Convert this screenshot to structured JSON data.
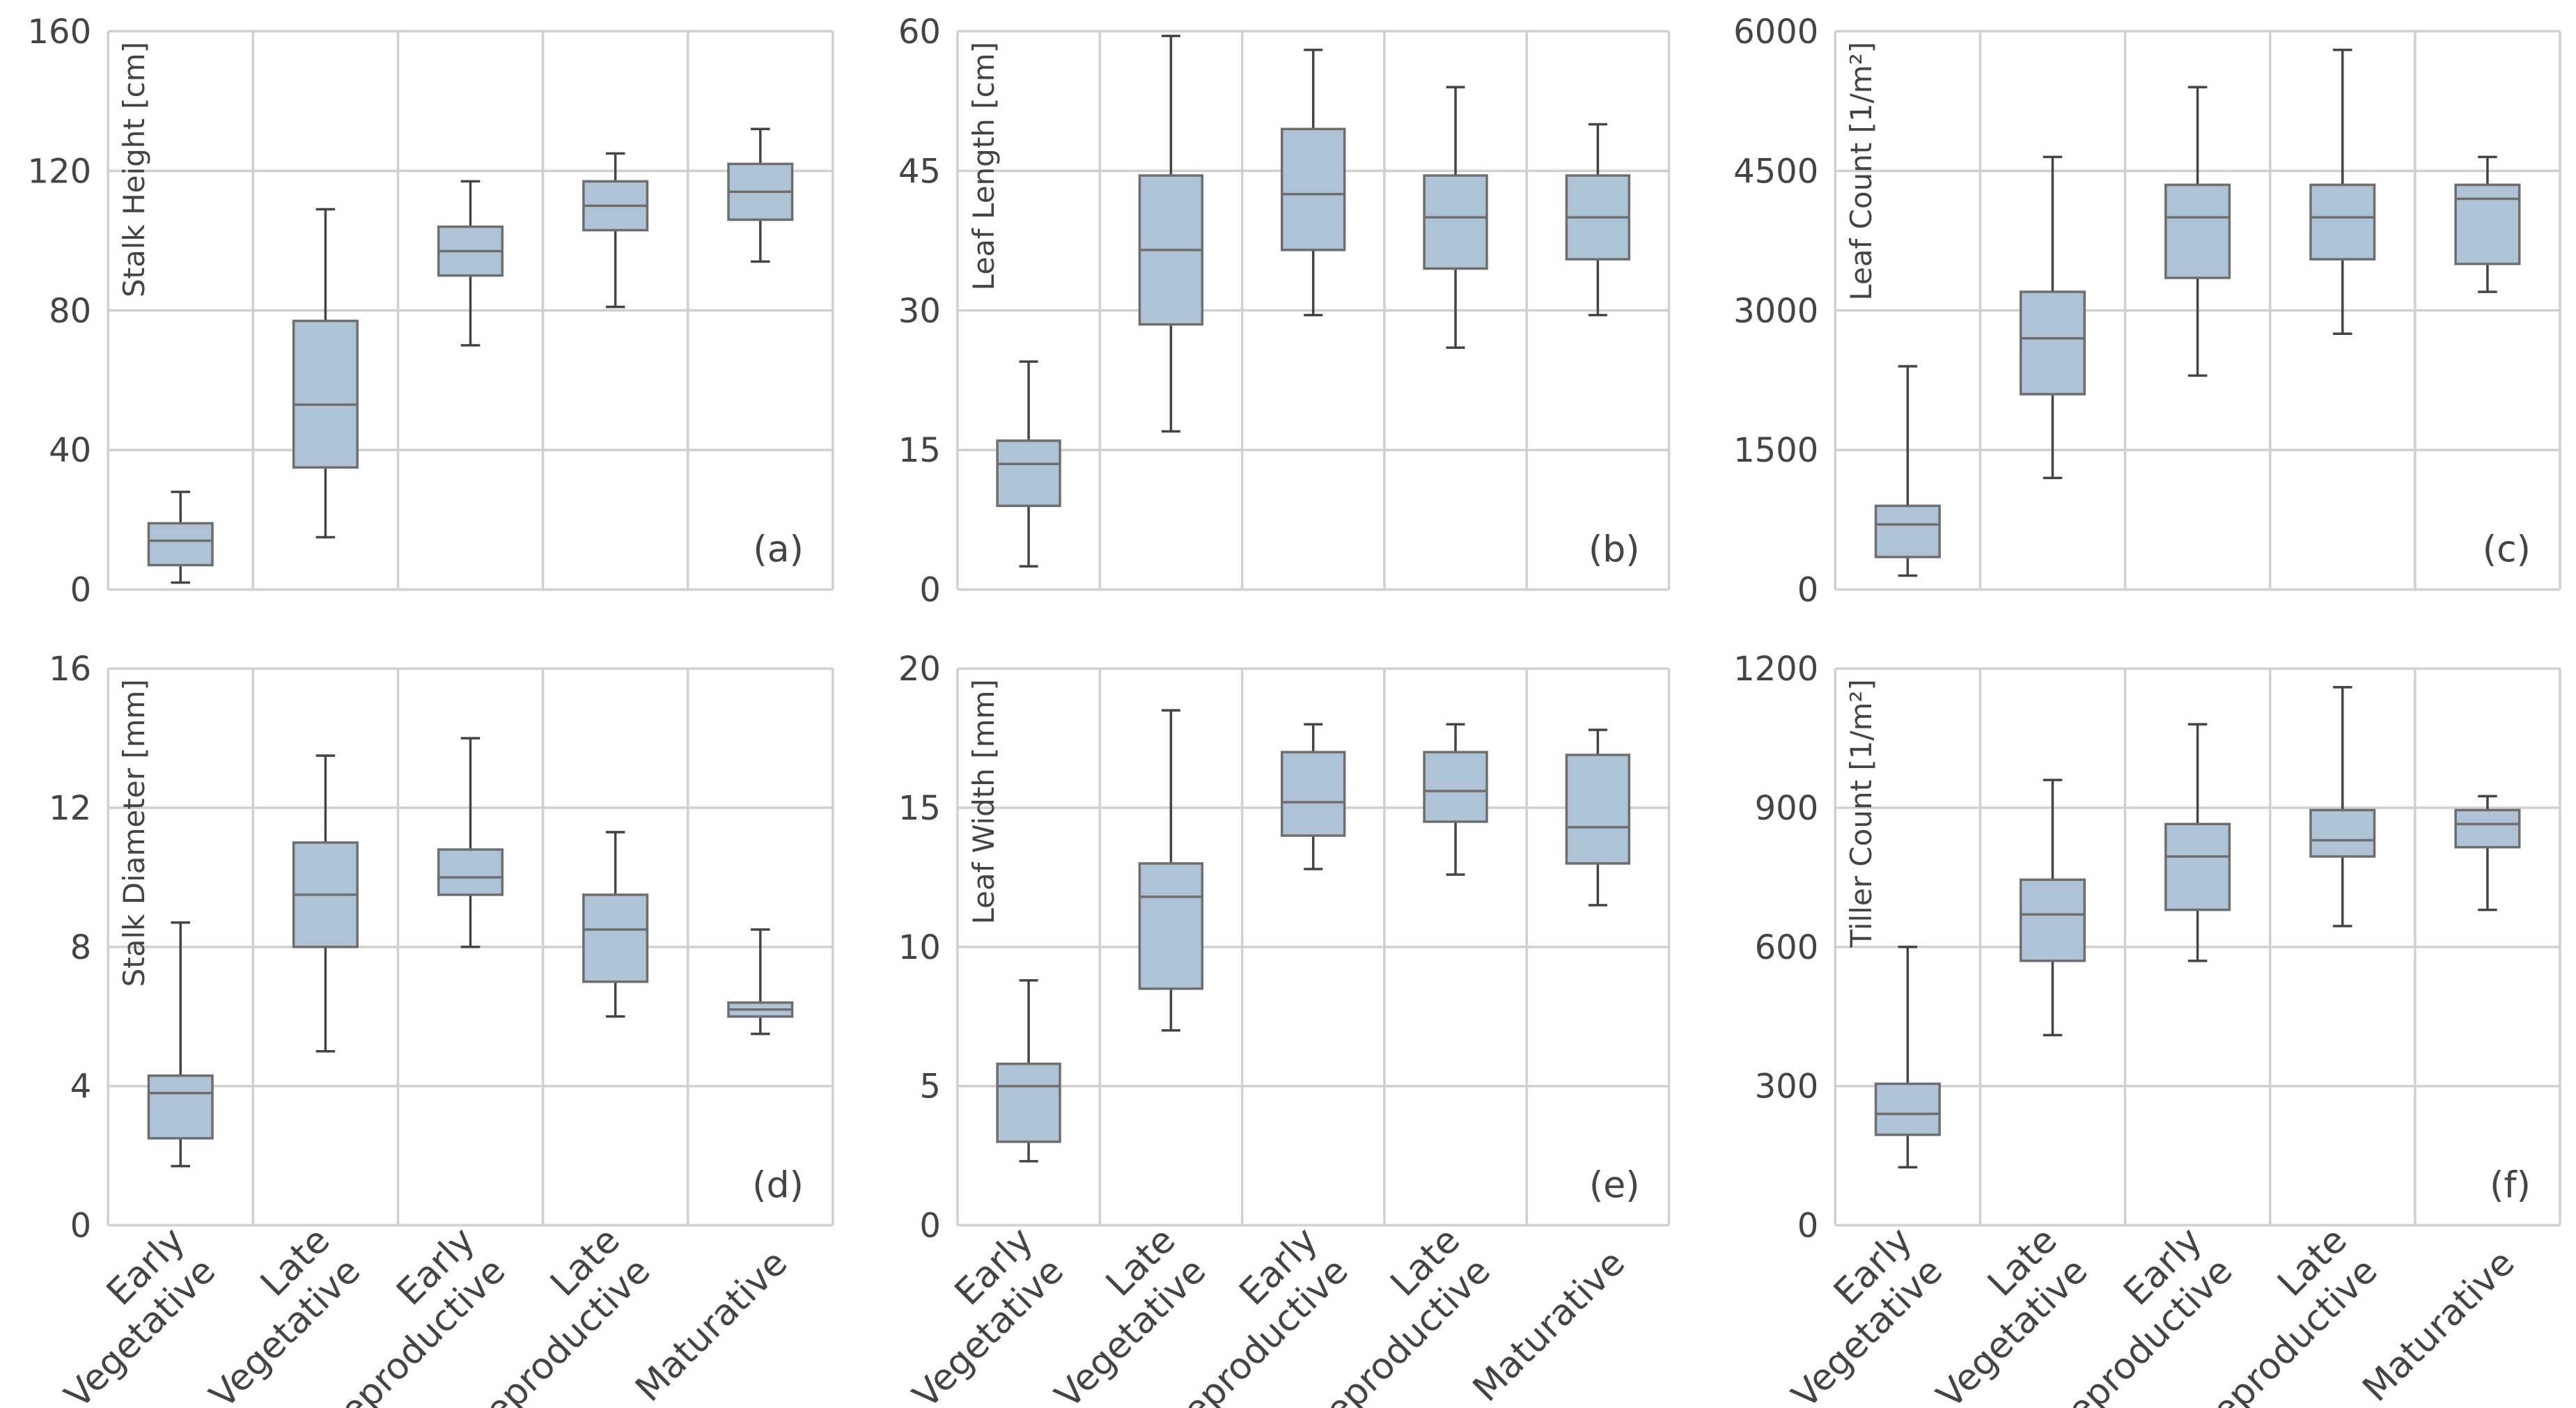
{
  "colors": {
    "box_fill": "#aec3d6",
    "box_stroke": "#6e6e6e",
    "whisker": "#444444",
    "grid": "#d0d0d0",
    "text": "#444444"
  },
  "categories": [
    "Early Vegetative",
    "Late Vegetative",
    "Early Reproductive",
    "Late Reproductive",
    "Maturative"
  ],
  "category_lines": [
    [
      "Early",
      "Vegetative"
    ],
    [
      "Late",
      "Vegetative"
    ],
    [
      "Early",
      "Reproductive"
    ],
    [
      "Late",
      "Reproductive"
    ],
    [
      "Maturative"
    ]
  ],
  "chart_data": [
    {
      "type": "box",
      "panel": "(a)",
      "ylabel": "Stalk Height [cm]",
      "ylim": [
        0,
        160
      ],
      "yticks": [
        "0",
        "40",
        "80",
        "120",
        "160"
      ],
      "ytick_values": [
        0,
        40,
        80,
        120,
        160
      ],
      "boxes": [
        {
          "category": "Early Vegetative",
          "min": 2,
          "q1": 7,
          "median": 14,
          "q3": 19,
          "max": 28
        },
        {
          "category": "Late Vegetative",
          "min": 15,
          "q1": 35,
          "median": 53,
          "q3": 77,
          "max": 109
        },
        {
          "category": "Early Reproductive",
          "min": 70,
          "q1": 90,
          "median": 97,
          "q3": 104,
          "max": 117
        },
        {
          "category": "Late Reproductive",
          "min": 81,
          "q1": 103,
          "median": 110,
          "q3": 117,
          "max": 125
        },
        {
          "category": "Maturative",
          "min": 94,
          "q1": 106,
          "median": 114,
          "q3": 122,
          "max": 132
        }
      ]
    },
    {
      "type": "box",
      "panel": "(b)",
      "ylabel": "Leaf Length [cm]",
      "ylim": [
        0,
        60
      ],
      "yticks": [
        "0",
        "15",
        "30",
        "45",
        "60"
      ],
      "ytick_values": [
        0,
        15,
        30,
        45,
        60
      ],
      "boxes": [
        {
          "category": "Early Vegetative",
          "min": 2.5,
          "q1": 9,
          "median": 13.5,
          "q3": 16,
          "max": 24.5
        },
        {
          "category": "Late Vegetative",
          "min": 17,
          "q1": 28.5,
          "median": 36.5,
          "q3": 44.5,
          "max": 59.5
        },
        {
          "category": "Early Reproductive",
          "min": 29.5,
          "q1": 36.5,
          "median": 42.5,
          "q3": 49.5,
          "max": 58
        },
        {
          "category": "Late Reproductive",
          "min": 26,
          "q1": 34.5,
          "median": 40,
          "q3": 44.5,
          "max": 54
        },
        {
          "category": "Maturative",
          "min": 29.5,
          "q1": 35.5,
          "median": 40,
          "q3": 44.5,
          "max": 50
        }
      ]
    },
    {
      "type": "box",
      "panel": "(c)",
      "ylabel": "Leaf Count [1/m²]",
      "ylim": [
        0,
        6000
      ],
      "yticks": [
        "0",
        "1500",
        "3000",
        "4500",
        "6000"
      ],
      "ytick_values": [
        0,
        1500,
        3000,
        4500,
        6000
      ],
      "boxes": [
        {
          "category": "Early Vegetative",
          "min": 150,
          "q1": 350,
          "median": 700,
          "q3": 900,
          "max": 2400
        },
        {
          "category": "Late Vegetative",
          "min": 1200,
          "q1": 2100,
          "median": 2700,
          "q3": 3200,
          "max": 4650
        },
        {
          "category": "Early Reproductive",
          "min": 2300,
          "q1": 3350,
          "median": 4000,
          "q3": 4350,
          "max": 5400
        },
        {
          "category": "Late Reproductive",
          "min": 2750,
          "q1": 3550,
          "median": 4000,
          "q3": 4350,
          "max": 5800
        },
        {
          "category": "Maturative",
          "min": 3200,
          "q1": 3500,
          "median": 4200,
          "q3": 4350,
          "max": 4650
        }
      ]
    },
    {
      "type": "box",
      "panel": "(d)",
      "ylabel": "Stalk Diameter [mm]",
      "ylim": [
        0,
        16
      ],
      "yticks": [
        "0",
        "4",
        "8",
        "12",
        "16"
      ],
      "ytick_values": [
        0,
        4,
        8,
        12,
        16
      ],
      "boxes": [
        {
          "category": "Early Vegetative",
          "min": 1.7,
          "q1": 2.5,
          "median": 3.8,
          "q3": 4.3,
          "max": 8.7
        },
        {
          "category": "Late Vegetative",
          "min": 5,
          "q1": 8,
          "median": 9.5,
          "q3": 11,
          "max": 13.5
        },
        {
          "category": "Early Reproductive",
          "min": 8,
          "q1": 9.5,
          "median": 10,
          "q3": 10.8,
          "max": 14
        },
        {
          "category": "Late Reproductive",
          "min": 6,
          "q1": 7,
          "median": 8.5,
          "q3": 9.5,
          "max": 11.3
        },
        {
          "category": "Maturative",
          "min": 5.5,
          "q1": 6,
          "median": 6.2,
          "q3": 6.4,
          "max": 8.5
        }
      ]
    },
    {
      "type": "box",
      "panel": "(e)",
      "ylabel": "Leaf Width [mm]",
      "ylim": [
        0,
        20
      ],
      "yticks": [
        "0",
        "5",
        "10",
        "15",
        "20"
      ],
      "ytick_values": [
        0,
        5,
        10,
        15,
        20
      ],
      "boxes": [
        {
          "category": "Early Vegetative",
          "min": 2.3,
          "q1": 3,
          "median": 5,
          "q3": 5.8,
          "max": 8.8
        },
        {
          "category": "Late Vegetative",
          "min": 7,
          "q1": 8.5,
          "median": 11.8,
          "q3": 13,
          "max": 18.5
        },
        {
          "category": "Early Reproductive",
          "min": 12.8,
          "q1": 14,
          "median": 15.2,
          "q3": 17,
          "max": 18
        },
        {
          "category": "Late Reproductive",
          "min": 12.6,
          "q1": 14.5,
          "median": 15.6,
          "q3": 17,
          "max": 18
        },
        {
          "category": "Maturative",
          "min": 11.5,
          "q1": 13,
          "median": 14.3,
          "q3": 16.9,
          "max": 17.8
        }
      ]
    },
    {
      "type": "box",
      "panel": "(f)",
      "ylabel": "Tiller Count [1/m²]",
      "ylim": [
        0,
        1200
      ],
      "yticks": [
        "0",
        "300",
        "600",
        "900",
        "1200"
      ],
      "ytick_values": [
        0,
        300,
        600,
        900,
        1200
      ],
      "boxes": [
        {
          "category": "Early Vegetative",
          "min": 125,
          "q1": 195,
          "median": 240,
          "q3": 305,
          "max": 600
        },
        {
          "category": "Late Vegetative",
          "min": 410,
          "q1": 570,
          "median": 670,
          "q3": 745,
          "max": 960
        },
        {
          "category": "Early Reproductive",
          "min": 570,
          "q1": 680,
          "median": 795,
          "q3": 865,
          "max": 1080
        },
        {
          "category": "Late Reproductive",
          "min": 645,
          "q1": 795,
          "median": 830,
          "q3": 895,
          "max": 1160
        },
        {
          "category": "Maturative",
          "min": 680,
          "q1": 815,
          "median": 865,
          "q3": 895,
          "max": 925
        }
      ]
    }
  ]
}
